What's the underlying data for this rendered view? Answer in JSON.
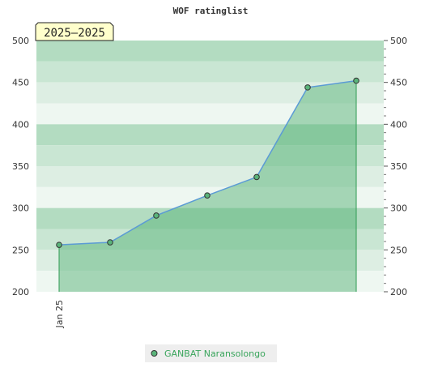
{
  "chart_data": {
    "type": "area",
    "title": "WOF ratinglist",
    "period_badge": "2025–2025",
    "xlabel": "",
    "ylabel": "",
    "x_ticks": [
      "Jan 25"
    ],
    "ylim": [
      200,
      500
    ],
    "y_ticks": [
      200,
      250,
      300,
      350,
      400,
      450,
      500
    ],
    "legend_position": "bottom-center",
    "grid": true,
    "series": [
      {
        "name": "GANBAT Naransolongo",
        "color": "#5ab47a",
        "line_color": "#5b9bd5",
        "values": [
          256,
          259,
          291,
          315,
          337,
          444,
          452
        ]
      }
    ]
  },
  "colors": {
    "band_dark": "#b3dcc1",
    "band_mid": "#c9e6d3",
    "band_light": "#ddeee3",
    "band_faint": "#eef7f1",
    "badge_fill": "#ffffcc",
    "legend_bg": "#eeeeee",
    "legend_text": "#3aa55c"
  }
}
